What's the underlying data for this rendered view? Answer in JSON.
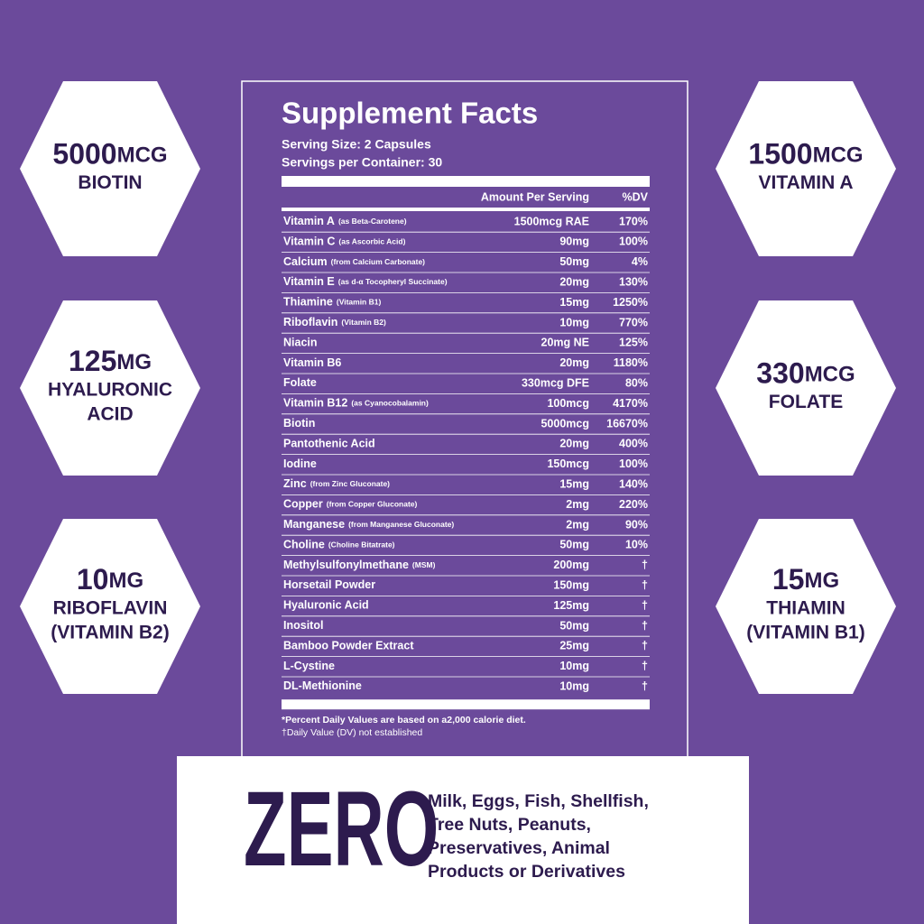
{
  "badges": [
    {
      "amount": "5000",
      "unit": "MCG",
      "lines": [
        "BIOTIN"
      ]
    },
    {
      "amount": "125",
      "unit": "MG",
      "lines": [
        "HYALURONIC",
        "ACID"
      ]
    },
    {
      "amount": "10",
      "unit": "MG",
      "lines": [
        "RIBOFLAVIN",
        "(VITAMIN B2)"
      ]
    },
    {
      "amount": "1500",
      "unit": "MCG",
      "lines": [
        "VITAMIN A"
      ]
    },
    {
      "amount": "330",
      "unit": "MCG",
      "lines": [
        "FOLATE"
      ]
    },
    {
      "amount": "15",
      "unit": "MG",
      "lines": [
        "THIAMIN",
        "(VITAMIN B1)"
      ]
    }
  ],
  "facts": {
    "title": "Supplement Facts",
    "serving_size": "Serving Size: 2 Capsules",
    "servings": "Servings per Container: 30",
    "amount_header": "Amount Per Serving",
    "dv_header": "%DV",
    "rows": [
      {
        "name": "Vitamin A",
        "note": "(as Beta-Carotene)",
        "amount": "1500mcg RAE",
        "dv": "170%"
      },
      {
        "name": "Vitamin C",
        "note": "(as Ascorbic Acid)",
        "amount": "90mg",
        "dv": "100%"
      },
      {
        "name": "Calcium",
        "note": "(from Calcium Carbonate)",
        "amount": "50mg",
        "dv": "4%"
      },
      {
        "name": "Vitamin E",
        "note": "(as d-α Tocopheryl Succinate)",
        "amount": "20mg",
        "dv": "130%"
      },
      {
        "name": "Thiamine",
        "note": "(Vitamin B1)",
        "amount": "15mg",
        "dv": "1250%"
      },
      {
        "name": "Riboflavin",
        "note": "(Vitamin B2)",
        "amount": "10mg",
        "dv": "770%"
      },
      {
        "name": "Niacin",
        "amount": "20mg NE",
        "dv": "125%"
      },
      {
        "name": "Vitamin B6",
        "amount": "20mg",
        "dv": "1180%"
      },
      {
        "name": "Folate",
        "amount": "330mcg DFE",
        "dv": "80%"
      },
      {
        "name": "Vitamin B12",
        "note": "(as Cyanocobalamin)",
        "amount": "100mcg",
        "dv": "4170%"
      },
      {
        "name": "Biotin",
        "amount": "5000mcg",
        "dv": "16670%"
      },
      {
        "name": "Pantothenic Acid",
        "amount": "20mg",
        "dv": "400%"
      },
      {
        "name": "Iodine",
        "amount": "150mcg",
        "dv": "100%"
      },
      {
        "name": "Zinc",
        "note": "(from Zinc Gluconate)",
        "amount": "15mg",
        "dv": "140%"
      },
      {
        "name": "Copper",
        "note": "(from Copper Gluconate)",
        "amount": "2mg",
        "dv": "220%"
      },
      {
        "name": "Manganese",
        "note": "(from Manganese Gluconate)",
        "amount": "2mg",
        "dv": "90%"
      },
      {
        "name": "Choline",
        "note": "(Choline Bitatrate)",
        "amount": "50mg",
        "dv": "10%"
      },
      {
        "name": "Methylsulfonylmethane",
        "note": "(MSM)",
        "amount": "200mg",
        "dv": "†"
      },
      {
        "name": "Horsetail Powder",
        "amount": "150mg",
        "dv": "†"
      },
      {
        "name": "Hyaluronic Acid",
        "amount": "125mg",
        "dv": "†"
      },
      {
        "name": "Inositol",
        "amount": "50mg",
        "dv": "†"
      },
      {
        "name": "Bamboo Powder Extract",
        "amount": "25mg",
        "dv": "†"
      },
      {
        "name": "L-Cystine",
        "amount": "10mg",
        "dv": "†"
      },
      {
        "name": "DL-Methionine",
        "amount": "10mg",
        "dv": "†"
      }
    ],
    "footnotes": [
      "*Percent Daily Values are based on a2,000 calorie diet.",
      "†Daily Value (DV) not established"
    ]
  },
  "zero": {
    "word": "ZERO",
    "lines": [
      "Milk, Eggs, Fish, Shellfish,",
      "Tree Nuts, Peanuts,",
      "Preservatives, Animal",
      "Products or Derivatives"
    ]
  }
}
